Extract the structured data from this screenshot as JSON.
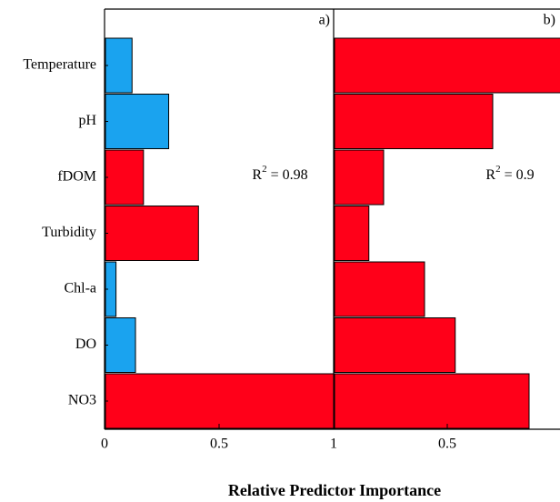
{
  "chart_data": [
    {
      "type": "bar",
      "orientation": "horizontal",
      "panel_label": "a)",
      "annotation": {
        "base": "R",
        "sup": "2",
        "rest": " = 0.98"
      },
      "categories": [
        "Temperature",
        "pH",
        "fDOM",
        "Turbidity",
        "Chl-a",
        "DO",
        "NO3"
      ],
      "values": [
        0.12,
        0.28,
        0.17,
        0.41,
        0.05,
        0.135,
        1.0
      ],
      "colors": [
        "#1aa3ef",
        "#1aa3ef",
        "#ff0019",
        "#ff0019",
        "#1aa3ef",
        "#1aa3ef",
        "#ff0019"
      ],
      "xlim": [
        0,
        1
      ],
      "xticks": [
        0,
        0.5,
        1
      ],
      "xlabel": "Relative Predictor Importance"
    },
    {
      "type": "bar",
      "orientation": "horizontal",
      "panel_label": "b)",
      "annotation": {
        "base": "R",
        "sup": "2",
        "rest": " = 0.9"
      },
      "values": [
        1.0,
        0.7,
        0.22,
        0.155,
        0.4,
        0.535,
        0.86
      ],
      "colors": [
        "#ff0019",
        "#ff0019",
        "#ff0019",
        "#ff0019",
        "#ff0019",
        "#ff0019",
        "#ff0019"
      ],
      "xlim": [
        0,
        1
      ],
      "xticks": [
        0.5
      ]
    }
  ]
}
